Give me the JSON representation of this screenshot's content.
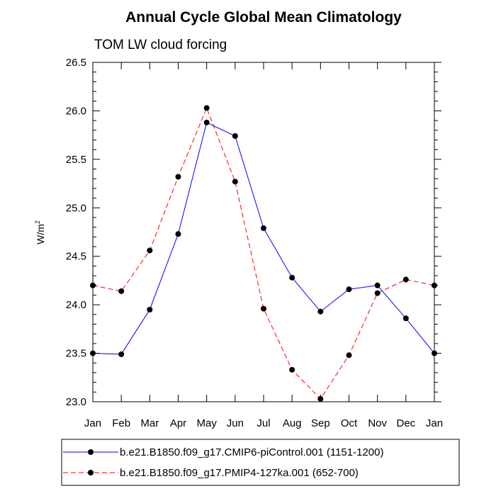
{
  "chart_data": {
    "type": "line",
    "title": "Annual Cycle Global Mean Climatology",
    "subtitle": "TOM LW cloud forcing",
    "xlabel": "",
    "ylabel": "W/m",
    "ylabel_sup": "2",
    "categories": [
      "Jan",
      "Feb",
      "Mar",
      "Apr",
      "May",
      "Jun",
      "Jul",
      "Aug",
      "Sep",
      "Oct",
      "Nov",
      "Dec",
      "Jan"
    ],
    "ylim": [
      23.0,
      26.5
    ],
    "yticks": [
      23.0,
      23.5,
      24.0,
      24.5,
      25.0,
      25.5,
      26.0,
      26.5
    ],
    "ytick_labels": [
      "23.0",
      "23.5",
      "24.0",
      "24.5",
      "25.0",
      "25.5",
      "26.0",
      "26.5"
    ],
    "grid": false,
    "legend_position": "bottom",
    "series": [
      {
        "name": "b.e21.B1850.f09_g17.CMIP6-piControl.001 (1151-1200)",
        "color": "#0000ff",
        "dash": "solid",
        "values": [
          23.5,
          23.49,
          23.95,
          24.73,
          25.88,
          25.74,
          24.79,
          24.28,
          23.93,
          24.16,
          24.2,
          23.86,
          23.5
        ]
      },
      {
        "name": "b.e21.B1850.f09_g17.PMIP4-127ka.001 (652-700)",
        "color": "#ff0000",
        "dash": "dashed",
        "values": [
          24.2,
          24.14,
          24.56,
          25.32,
          26.03,
          25.27,
          23.96,
          23.33,
          23.03,
          23.48,
          24.12,
          24.26,
          24.2
        ]
      }
    ],
    "marker_color": "#000000"
  }
}
